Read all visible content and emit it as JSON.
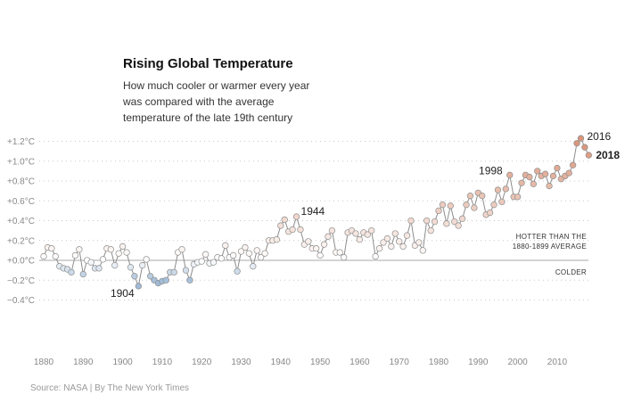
{
  "title": "Rising Global Temperature",
  "subtitle": "How much cooler or warmer every year was compared with the average temperature of the late 19th century",
  "source": "Source: NASA | By The New York Times",
  "colors": {
    "warm": "#d9967c",
    "cool": "#9fbad6",
    "line": "#8c8c8c"
  },
  "chart_data": {
    "type": "line",
    "title": "Rising Global Temperature",
    "xlabel": "",
    "ylabel": "",
    "xlim": [
      1880,
      2018
    ],
    "ylim": [
      -0.4,
      1.2
    ],
    "x_ticks": [
      1880,
      1890,
      1900,
      1910,
      1920,
      1930,
      1940,
      1950,
      1960,
      1970,
      1980,
      1990,
      2000,
      2010
    ],
    "y_ticks": [
      {
        "value": -0.4,
        "label": "−0.4°C"
      },
      {
        "value": -0.2,
        "label": "−0.2°C"
      },
      {
        "value": 0.0,
        "label": "+0.0°C"
      },
      {
        "value": 0.2,
        "label": "+0.2°C"
      },
      {
        "value": 0.4,
        "label": "+0.4°C"
      },
      {
        "value": 0.6,
        "label": "+0.6°C"
      },
      {
        "value": 0.8,
        "label": "+0.8°C"
      },
      {
        "value": 1.0,
        "label": "+1.0°C"
      },
      {
        "value": 1.2,
        "label": "+1.2°C"
      }
    ],
    "grid": true,
    "x": [
      1880,
      1881,
      1882,
      1883,
      1884,
      1885,
      1886,
      1887,
      1888,
      1889,
      1890,
      1891,
      1892,
      1893,
      1894,
      1895,
      1896,
      1897,
      1898,
      1899,
      1900,
      1901,
      1902,
      1903,
      1904,
      1905,
      1906,
      1907,
      1908,
      1909,
      1910,
      1911,
      1912,
      1913,
      1914,
      1915,
      1916,
      1917,
      1918,
      1919,
      1920,
      1921,
      1922,
      1923,
      1924,
      1925,
      1926,
      1927,
      1928,
      1929,
      1930,
      1931,
      1932,
      1933,
      1934,
      1935,
      1936,
      1937,
      1938,
      1939,
      1940,
      1941,
      1942,
      1943,
      1944,
      1945,
      1946,
      1947,
      1948,
      1949,
      1950,
      1951,
      1952,
      1953,
      1954,
      1955,
      1956,
      1957,
      1958,
      1959,
      1960,
      1961,
      1962,
      1963,
      1964,
      1965,
      1966,
      1967,
      1968,
      1969,
      1970,
      1971,
      1972,
      1973,
      1974,
      1975,
      1976,
      1977,
      1978,
      1979,
      1980,
      1981,
      1982,
      1983,
      1984,
      1985,
      1986,
      1987,
      1988,
      1989,
      1990,
      1991,
      1992,
      1993,
      1994,
      1995,
      1996,
      1997,
      1998,
      1999,
      2000,
      2001,
      2002,
      2003,
      2004,
      2005,
      2006,
      2007,
      2008,
      2009,
      2010,
      2011,
      2012,
      2013,
      2014,
      2015,
      2016,
      2017,
      2018
    ],
    "series": [
      {
        "values": [
          0.04,
          0.13,
          0.12,
          0.04,
          -0.06,
          -0.08,
          -0.09,
          -0.12,
          0.05,
          0.11,
          -0.14,
          0.0,
          -0.02,
          -0.08,
          -0.08,
          0.01,
          0.12,
          0.11,
          -0.05,
          0.07,
          0.14,
          0.08,
          -0.07,
          -0.16,
          -0.26,
          -0.05,
          0.01,
          -0.16,
          -0.2,
          -0.23,
          -0.21,
          -0.2,
          -0.12,
          -0.12,
          0.08,
          0.11,
          -0.1,
          -0.2,
          -0.04,
          -0.02,
          -0.01,
          0.06,
          -0.03,
          -0.02,
          0.03,
          0.02,
          0.15,
          0.03,
          0.05,
          -0.11,
          0.09,
          0.13,
          0.07,
          -0.06,
          0.1,
          0.03,
          0.07,
          0.2,
          0.2,
          0.21,
          0.35,
          0.41,
          0.29,
          0.31,
          0.44,
          0.31,
          0.16,
          0.19,
          0.12,
          0.12,
          0.05,
          0.16,
          0.24,
          0.3,
          0.08,
          0.08,
          0.03,
          0.28,
          0.3,
          0.27,
          0.21,
          0.28,
          0.26,
          0.3,
          0.04,
          0.12,
          0.18,
          0.22,
          0.14,
          0.27,
          0.19,
          0.14,
          0.25,
          0.4,
          0.15,
          0.18,
          0.1,
          0.4,
          0.3,
          0.39,
          0.5,
          0.56,
          0.37,
          0.55,
          0.39,
          0.35,
          0.42,
          0.56,
          0.65,
          0.53,
          0.68,
          0.65,
          0.46,
          0.48,
          0.56,
          0.71,
          0.59,
          0.72,
          0.86,
          0.64,
          0.64,
          0.78,
          0.86,
          0.84,
          0.77,
          0.9,
          0.85,
          0.87,
          0.75,
          0.85,
          0.93,
          0.82,
          0.85,
          0.88,
          0.96,
          1.18,
          1.23,
          1.14,
          1.06
        ]
      }
    ],
    "annotations": [
      {
        "year": 1904,
        "label": "1904"
      },
      {
        "year": 1944,
        "label": "1944"
      },
      {
        "year": 1998,
        "label": "1998"
      },
      {
        "year": 2016,
        "label": "2016"
      },
      {
        "year": 2018,
        "label": "2018"
      }
    ],
    "side_labels": {
      "hotter_1": "HOTTER THAN THE",
      "hotter_2": "1880-1899 AVERAGE",
      "colder": "COLDER"
    }
  }
}
